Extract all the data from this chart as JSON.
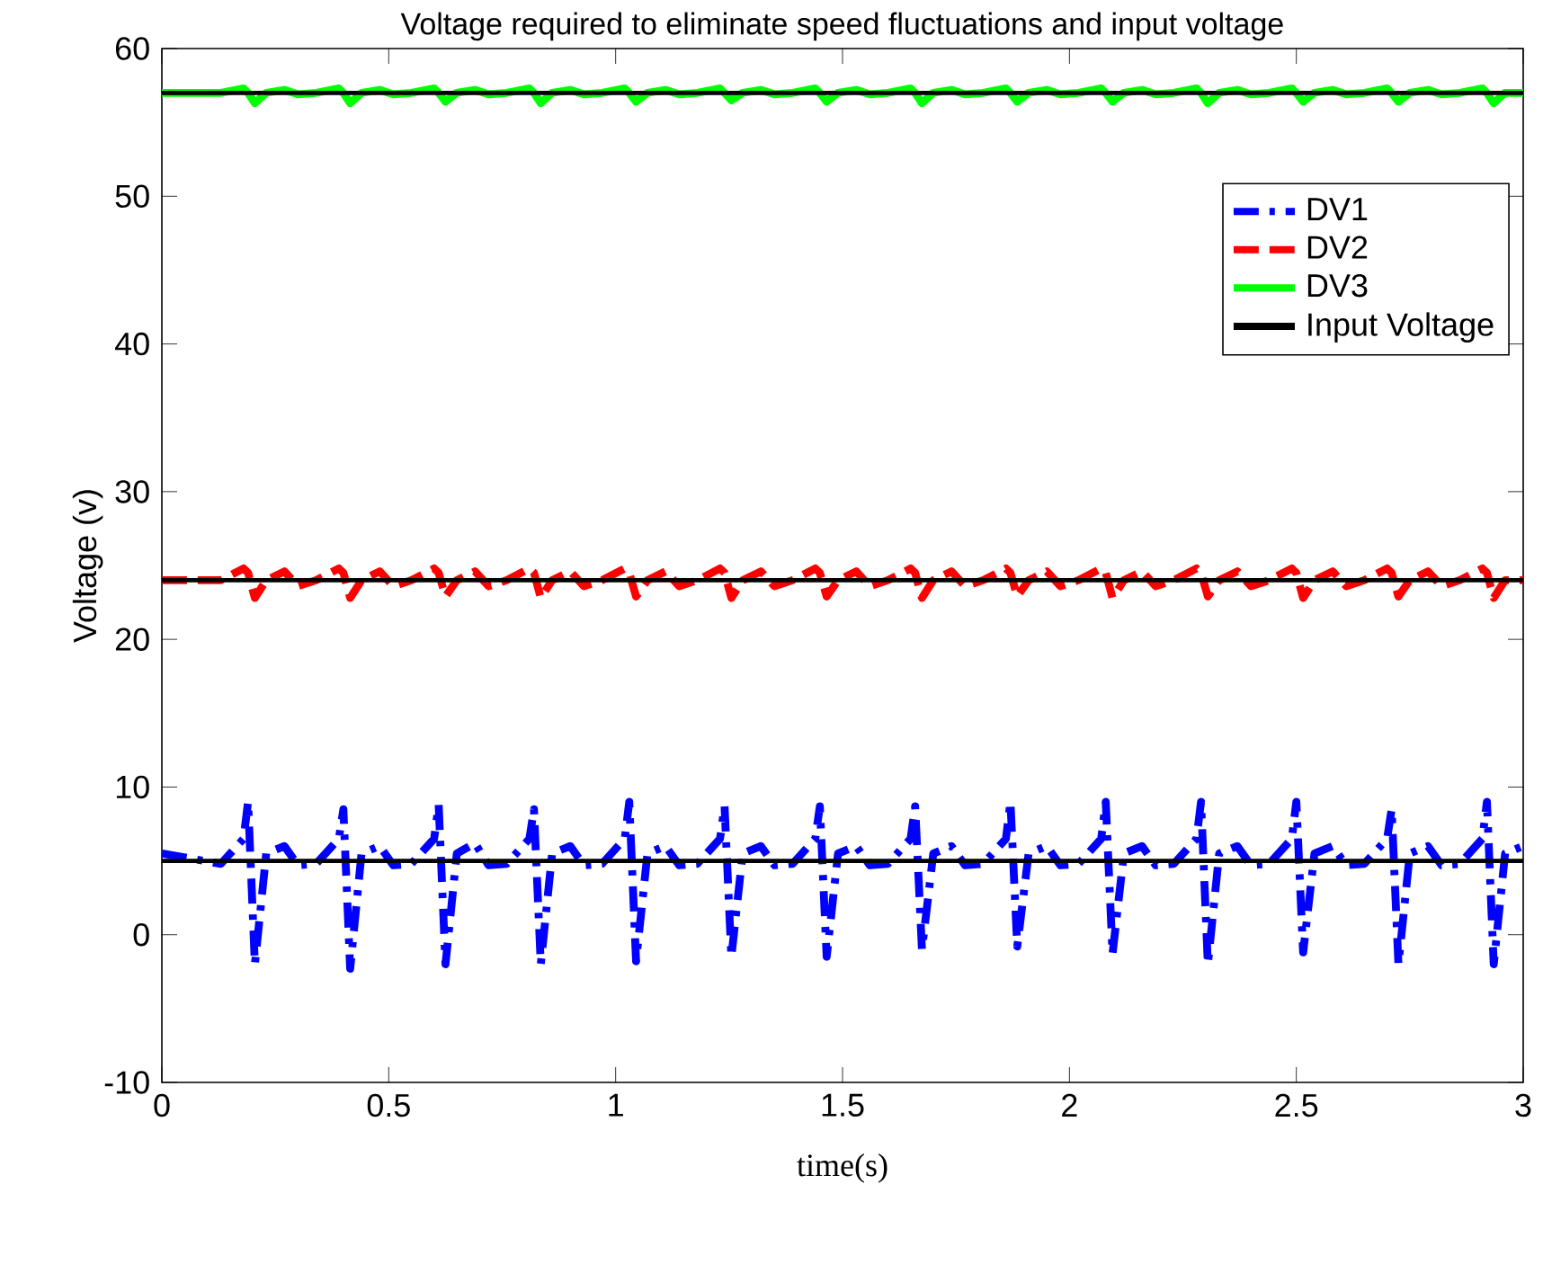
{
  "chart_data": {
    "type": "line",
    "title": "Voltage required to eliminate speed fluctuations and input voltage",
    "xlabel": "time(s)",
    "ylabel": "Voltage (v)",
    "x": [
      0,
      0.13,
      0.18,
      0.19,
      0.205,
      0.23,
      0.27,
      0.3,
      0.34,
      0.39,
      0.4,
      0.415,
      0.44,
      0.48,
      0.51,
      0.55,
      0.6,
      0.61,
      0.625,
      0.65,
      0.69,
      0.72,
      0.76,
      0.81,
      0.82,
      0.835,
      0.86,
      0.9,
      0.93,
      0.97,
      1.02,
      1.03,
      1.045,
      1.07,
      1.11,
      1.14,
      1.18,
      1.23,
      1.24,
      1.255,
      1.28,
      1.32,
      1.35,
      1.39,
      1.44,
      1.45,
      1.465,
      1.49,
      1.53,
      1.56,
      1.6,
      1.65,
      1.66,
      1.675,
      1.7,
      1.74,
      1.77,
      1.81,
      1.86,
      1.87,
      1.885,
      1.91,
      1.95,
      1.98,
      2.02,
      2.07,
      2.08,
      2.095,
      2.12,
      2.16,
      2.19,
      2.23,
      2.28,
      2.29,
      2.305,
      2.33,
      2.37,
      2.4,
      2.44,
      2.49,
      2.5,
      2.515,
      2.54,
      2.58,
      2.61,
      2.65,
      2.7,
      2.71,
      2.725,
      2.75,
      2.79,
      2.82,
      2.86,
      2.91,
      2.92,
      2.935,
      2.96,
      3.0
    ],
    "series": [
      {
        "name": "DV1",
        "color": "#0000ff",
        "line_style": "dashdot",
        "values": [
          5.5,
          4.8,
          6.5,
          9,
          -2,
          5.5,
          6,
          4.7,
          4.8,
          6.5,
          8.5,
          -2.3,
          5.5,
          6,
          4.7,
          4.8,
          6.5,
          8.8,
          -2,
          5.5,
          6.2,
          4.7,
          4.8,
          6.5,
          8.5,
          -2,
          5.5,
          6,
          4.7,
          4.8,
          6.5,
          9,
          -1.8,
          5.5,
          6,
          4.7,
          4.8,
          6.5,
          8.7,
          -1.5,
          5.5,
          6,
          4.7,
          4.8,
          6.5,
          8.7,
          -1.5,
          5.5,
          6,
          4.7,
          4.8,
          6.5,
          8.7,
          -1,
          5.5,
          6,
          4.7,
          4.8,
          6.5,
          9,
          -0.8,
          5.5,
          6,
          4.7,
          4.8,
          6.5,
          9,
          -1.3,
          5.5,
          6,
          4.7,
          4.8,
          6.5,
          9,
          -2,
          5.5,
          6,
          4.7,
          4.8,
          6.5,
          9,
          -1.2,
          5.5,
          6,
          4.7,
          4.8,
          6.5,
          8.5,
          -2,
          5.5,
          6,
          4.7,
          4.8,
          6.5,
          9,
          -2,
          5.5,
          6
        ]
      },
      {
        "name": "DV2",
        "color": "#ff0000",
        "line_style": "dashed",
        "values": [
          24,
          24,
          24.8,
          24.5,
          22.8,
          24,
          24.6,
          23.6,
          24,
          24.8,
          24.5,
          22.8,
          24,
          24.6,
          23.6,
          24,
          24.8,
          24.5,
          22.9,
          24,
          24.6,
          23.6,
          24,
          24.8,
          24.5,
          22.8,
          24,
          24.6,
          23.6,
          24,
          24.8,
          24.5,
          22.9,
          24,
          24.6,
          23.6,
          24,
          24.8,
          24.5,
          22.8,
          24,
          24.6,
          23.6,
          24,
          24.8,
          24.5,
          22.9,
          24,
          24.6,
          23.6,
          24,
          24.8,
          24.5,
          22.8,
          24,
          24.6,
          23.6,
          24,
          24.8,
          24.5,
          22.9,
          24,
          24.6,
          23.6,
          24,
          24.8,
          24.5,
          22.8,
          24,
          24.6,
          23.6,
          24,
          24.8,
          24.5,
          22.9,
          24,
          24.6,
          23.6,
          24,
          24.8,
          24.5,
          22.8,
          24,
          24.6,
          23.6,
          24,
          24.8,
          24.5,
          22.9,
          24,
          24.6,
          23.6,
          24,
          24.8,
          24.5,
          22.8,
          24,
          24
        ]
      },
      {
        "name": "DV3",
        "color": "#00ff00",
        "line_style": "solid",
        "values": [
          57,
          57,
          57.3,
          57,
          56.3,
          57,
          57.2,
          56.9,
          57,
          57.3,
          57,
          56.3,
          57,
          57.2,
          56.9,
          57,
          57.3,
          57,
          56.4,
          57,
          57.2,
          56.9,
          57,
          57.3,
          57,
          56.3,
          57,
          57.2,
          56.9,
          57,
          57.3,
          57,
          56.4,
          57,
          57.2,
          56.9,
          57,
          57.3,
          57,
          56.5,
          57,
          57.2,
          56.9,
          57,
          57.3,
          57,
          56.4,
          57,
          57.2,
          56.9,
          57,
          57.3,
          57,
          56.3,
          57,
          57.2,
          56.9,
          57,
          57.3,
          57,
          56.4,
          57,
          57.2,
          56.9,
          57,
          57.3,
          57,
          56.4,
          57,
          57.2,
          56.9,
          57,
          57.3,
          57,
          56.3,
          57,
          57.2,
          56.9,
          57,
          57.3,
          57,
          56.4,
          57,
          57.2,
          56.9,
          57,
          57.3,
          57,
          56.4,
          57,
          57.2,
          56.9,
          57,
          57.3,
          57,
          56.3,
          57,
          57
        ]
      },
      {
        "name": "Input Voltage",
        "color": "#000000",
        "line_style": "solid",
        "values": [
          5,
          5,
          5,
          5,
          5,
          5,
          5,
          5,
          5,
          5,
          5,
          5,
          5,
          5,
          5,
          5,
          5,
          5,
          5,
          5,
          5,
          5,
          5,
          5,
          5,
          5,
          5,
          5,
          5,
          5,
          5,
          5,
          5,
          5,
          5,
          5,
          5,
          5,
          5,
          5,
          5,
          5,
          5,
          5,
          5,
          5,
          5,
          5,
          5,
          5,
          5,
          5,
          5,
          5,
          5,
          5,
          5,
          5,
          5,
          5,
          5,
          5,
          5,
          5,
          5,
          5,
          5,
          5,
          5,
          5,
          5,
          5,
          5,
          5,
          5,
          5,
          5,
          5,
          5,
          5,
          5,
          5,
          5,
          5,
          5,
          5,
          5,
          5,
          5,
          5,
          5,
          5,
          5,
          5,
          5,
          5,
          5,
          5
        ]
      },
      {
        "color": "#000000",
        "line_style": "solid",
        "values": [
          24,
          24,
          24,
          24,
          24,
          24,
          24,
          24,
          24,
          24,
          24,
          24,
          24,
          24,
          24,
          24,
          24,
          24,
          24,
          24,
          24,
          24,
          24,
          24,
          24,
          24,
          24,
          24,
          24,
          24,
          24,
          24,
          24,
          24,
          24,
          24,
          24,
          24,
          24,
          24,
          24,
          24,
          24,
          24,
          24,
          24,
          24,
          24,
          24,
          24,
          24,
          24,
          24,
          24,
          24,
          24,
          24,
          24,
          24,
          24,
          24,
          24,
          24,
          24,
          24,
          24,
          24,
          24,
          24,
          24,
          24,
          24,
          24,
          24,
          24,
          24,
          24,
          24,
          24,
          24,
          24,
          24,
          24,
          24,
          24,
          24,
          24,
          24,
          24,
          24,
          24,
          24,
          24,
          24,
          24,
          24,
          24,
          24
        ]
      },
      {
        "color": "#000000",
        "line_style": "solid",
        "values": [
          57,
          57,
          57,
          57,
          57,
          57,
          57,
          57,
          57,
          57,
          57,
          57,
          57,
          57,
          57,
          57,
          57,
          57,
          57,
          57,
          57,
          57,
          57,
          57,
          57,
          57,
          57,
          57,
          57,
          57,
          57,
          57,
          57,
          57,
          57,
          57,
          57,
          57,
          57,
          57,
          57,
          57,
          57,
          57,
          57,
          57,
          57,
          57,
          57,
          57,
          57,
          57,
          57,
          57,
          57,
          57,
          57,
          57,
          57,
          57,
          57,
          57,
          57,
          57,
          57,
          57,
          57,
          57,
          57,
          57,
          57,
          57,
          57,
          57,
          57,
          57,
          57,
          57,
          57,
          57,
          57,
          57,
          57,
          57,
          57,
          57,
          57,
          57,
          57,
          57,
          57,
          57,
          57,
          57,
          57,
          57,
          57,
          57
        ]
      }
    ],
    "xlim": [
      0,
      3
    ],
    "ylim": [
      -10,
      60
    ],
    "xticks": [
      0,
      0.5,
      1,
      1.5,
      2,
      2.5,
      3
    ],
    "yticks": [
      -10,
      0,
      10,
      20,
      30,
      40,
      50,
      60
    ],
    "legend": "top right",
    "grid": false,
    "marker": "none"
  }
}
